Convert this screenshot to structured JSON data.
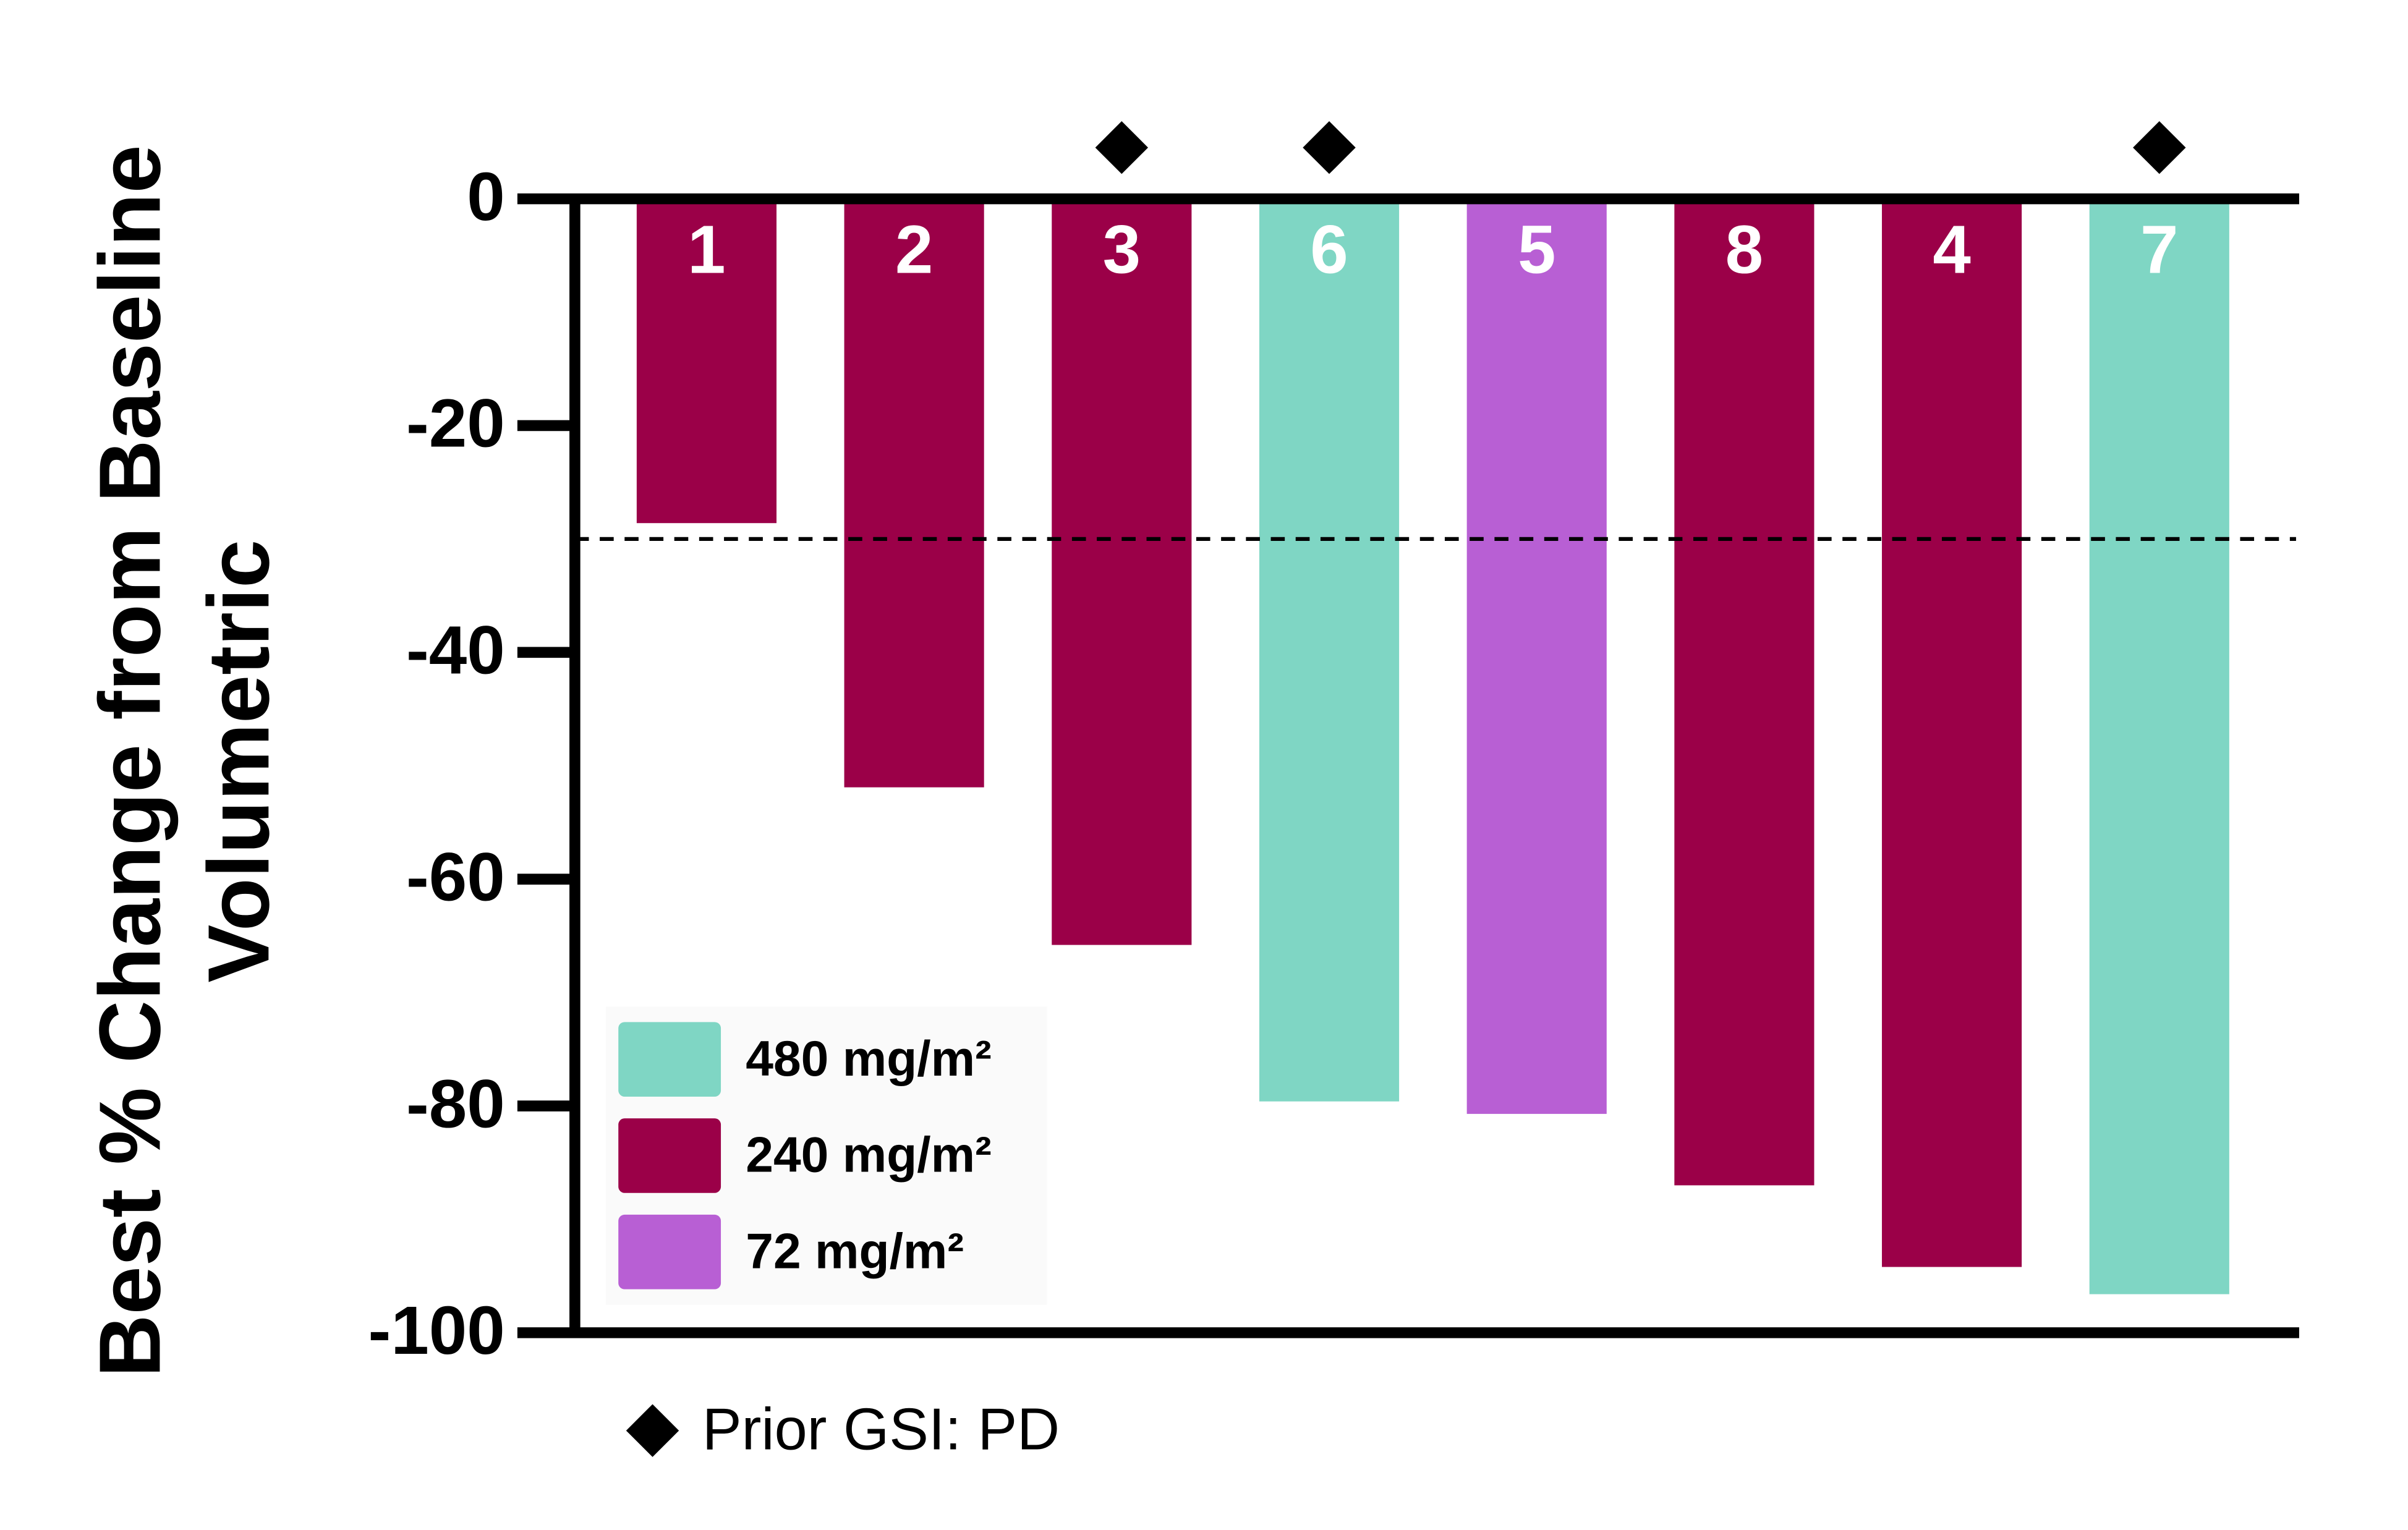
{
  "chart_data": {
    "type": "bar",
    "ylabel": [
      "Best  % Change from Baseline",
      "Volumetric"
    ],
    "categories": [
      "1",
      "2",
      "3",
      "6",
      "5",
      "8",
      "4",
      "7"
    ],
    "series": [
      {
        "name": "480 mg/m²",
        "color": "#7fd6c4",
        "values": [
          null,
          null,
          null,
          -79.6,
          null,
          null,
          null,
          -96.6
        ]
      },
      {
        "name": "240 mg/m²",
        "color": "#9b0048",
        "values": [
          -28.6,
          -51.9,
          -65.8,
          null,
          null,
          -87.0,
          -94.2,
          null
        ]
      },
      {
        "name": "72 mg/m²",
        "color": "#b85fd4",
        "values": [
          null,
          null,
          null,
          null,
          -80.7,
          null,
          null,
          null
        ]
      }
    ],
    "ylim": [
      -100,
      0
    ],
    "yticks": [
      0,
      -20,
      -40,
      -60,
      -80,
      -100
    ],
    "reference_line": -30,
    "legend": "lower left",
    "markers": {
      "label": "Prior GSI: PD",
      "categories": [
        "3",
        "6",
        "7"
      ]
    }
  }
}
